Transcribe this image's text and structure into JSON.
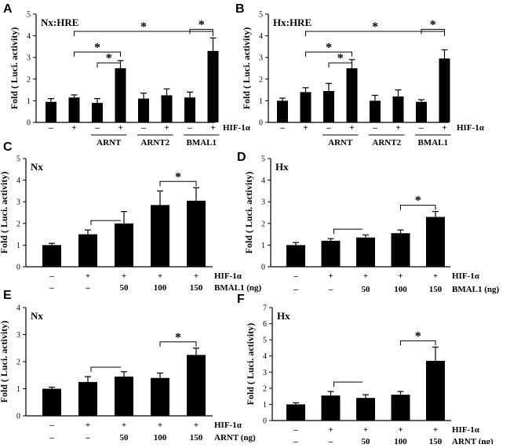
{
  "panels": [
    {
      "letter": "A",
      "inner_label": "Nx:HRE",
      "ylabel": "Fold ( Luci. activity)",
      "ylim": [
        0,
        5
      ],
      "yticks": [
        "0",
        "1",
        "2",
        "3",
        "4",
        "5"
      ],
      "plus_minus": [
        "–",
        "+",
        "–",
        "+",
        "–",
        "+",
        "–",
        "+"
      ],
      "row1_label": "HIF-1α",
      "groups": [
        {
          "label": "ARNT",
          "from": 2,
          "to": 3
        },
        {
          "label": "ARNT2",
          "from": 4,
          "to": 5
        },
        {
          "label": "BMAL1",
          "from": 6,
          "to": 7
        }
      ],
      "significance": [
        {
          "a": 1,
          "b": 3,
          "mark": "*"
        },
        {
          "a": 2,
          "b": 3,
          "mark": "*"
        },
        {
          "a": 1,
          "b": 7,
          "mark": "*"
        },
        {
          "a": 6,
          "b": 7,
          "mark": "*"
        }
      ]
    },
    {
      "letter": "B",
      "inner_label": "Hx:HRE",
      "ylabel": "Fold ( Luci. activity)",
      "ylim": [
        0,
        5
      ],
      "yticks": [
        "0",
        "1",
        "2",
        "3",
        "4",
        "5"
      ],
      "plus_minus": [
        "–",
        "+",
        "–",
        "+",
        "–",
        "+",
        "–",
        "+"
      ],
      "row1_label": "HIF-1α",
      "groups": [
        {
          "label": "ARNT",
          "from": 2,
          "to": 3
        },
        {
          "label": "ARNT2",
          "from": 4,
          "to": 5
        },
        {
          "label": "BMAL1",
          "from": 6,
          "to": 7
        }
      ],
      "significance": [
        {
          "a": 1,
          "b": 3,
          "mark": "*"
        },
        {
          "a": 2,
          "b": 3,
          "mark": "*"
        },
        {
          "a": 1,
          "b": 7,
          "mark": "*"
        },
        {
          "a": 6,
          "b": 7,
          "mark": "*"
        }
      ]
    },
    {
      "letter": "C",
      "inner_label": "Nx",
      "ylabel": "Fold ( Luci. activity)",
      "ylim": [
        0,
        5
      ],
      "yticks": [
        "0",
        "1",
        "2",
        "3",
        "4",
        "5"
      ],
      "row1": [
        "–",
        "+",
        "+",
        "+",
        "+"
      ],
      "row1_label": "HIF-1α",
      "row2": [
        "–",
        "–",
        "50",
        "100",
        "150"
      ],
      "row2_label": "BMAL1 (ng)",
      "bracket": {
        "a": 1,
        "b": 2
      },
      "significance": [
        {
          "a": 3,
          "b": 4,
          "mark": "*"
        }
      ]
    },
    {
      "letter": "D",
      "inner_label": "Hx",
      "ylabel": "Fold ( Luci. activity)",
      "ylim": [
        0,
        5
      ],
      "yticks": [
        "0",
        "1",
        "2",
        "3",
        "4",
        "5"
      ],
      "row1": [
        "–",
        "+",
        "+",
        "+",
        "+"
      ],
      "row1_label": "HIF-1α",
      "row2": [
        "–",
        "–",
        "50",
        "100",
        "150"
      ],
      "row2_label": "BMAL1 (ng)",
      "bracket": {
        "a": 1,
        "b": 2
      },
      "significance": [
        {
          "a": 3,
          "b": 4,
          "mark": "*"
        }
      ]
    },
    {
      "letter": "E",
      "inner_label": "Nx",
      "ylabel": "Fold ( Luci. activity)",
      "ylim": [
        0,
        4
      ],
      "yticks": [
        "0",
        "1",
        "2",
        "3",
        "4"
      ],
      "row1": [
        "–",
        "+",
        "+",
        "+",
        "+"
      ],
      "row1_label": "HIF-1α",
      "row2": [
        "–",
        "–",
        "50",
        "100",
        "150"
      ],
      "row2_label": "ARNT (ng)",
      "bracket": {
        "a": 1,
        "b": 2
      },
      "significance": [
        {
          "a": 3,
          "b": 4,
          "mark": "*"
        }
      ]
    },
    {
      "letter": "F",
      "inner_label": "Hx",
      "ylabel": "Fold ( Luci. activity)",
      "ylim": [
        0,
        7
      ],
      "yticks": [
        "0",
        "1",
        "2",
        "3",
        "4",
        "5",
        "6",
        "7"
      ],
      "row1": [
        "–",
        "+",
        "+",
        "+",
        "+"
      ],
      "row1_label": "HIF-1α",
      "row2": [
        "–",
        "–",
        "50",
        "100",
        "150"
      ],
      "row2_label": "ARNT (ng)",
      "bracket": {
        "a": 1,
        "b": 2
      },
      "significance": [
        {
          "a": 3,
          "b": 4,
          "mark": "*"
        }
      ]
    }
  ],
  "chart_data": [
    {
      "type": "bar",
      "title": "Nx:HRE",
      "ylabel": "Fold ( Luci. activity)",
      "ylim": [
        0,
        5
      ],
      "categories": [
        "1",
        "2",
        "3",
        "4",
        "5",
        "6",
        "7",
        "8"
      ],
      "values": [
        0.95,
        1.15,
        0.9,
        2.5,
        1.1,
        1.25,
        1.15,
        3.3
      ],
      "errors": [
        0.15,
        0.12,
        0.2,
        0.35,
        0.25,
        0.3,
        0.25,
        0.6
      ]
    },
    {
      "type": "bar",
      "title": "Hx:HRE",
      "ylabel": "Fold ( Luci. activity)",
      "ylim": [
        0,
        5
      ],
      "categories": [
        "1",
        "2",
        "3",
        "4",
        "5",
        "6",
        "7",
        "8"
      ],
      "values": [
        1.0,
        1.4,
        1.45,
        2.5,
        1.0,
        1.2,
        0.95,
        2.95
      ],
      "errors": [
        0.12,
        0.2,
        0.35,
        0.4,
        0.25,
        0.3,
        0.1,
        0.4
      ]
    },
    {
      "type": "bar",
      "title": "Nx",
      "ylabel": "Fold ( Luci. activity)",
      "ylim": [
        0,
        5
      ],
      "categories": [
        "1",
        "2",
        "3",
        "4",
        "5"
      ],
      "values": [
        1.0,
        1.5,
        2.0,
        2.85,
        3.05
      ],
      "errors": [
        0.08,
        0.2,
        0.55,
        0.65,
        0.6
      ]
    },
    {
      "type": "bar",
      "title": "Hx",
      "ylabel": "Fold ( Luci. activity)",
      "ylim": [
        0,
        5
      ],
      "categories": [
        "1",
        "2",
        "3",
        "4",
        "5"
      ],
      "values": [
        1.0,
        1.2,
        1.35,
        1.55,
        2.3
      ],
      "errors": [
        0.12,
        0.1,
        0.12,
        0.15,
        0.25
      ]
    },
    {
      "type": "bar",
      "title": "Nx",
      "ylabel": "Fold ( Luci. activity)",
      "ylim": [
        0,
        4
      ],
      "categories": [
        "1",
        "2",
        "3",
        "4",
        "5"
      ],
      "values": [
        1.0,
        1.25,
        1.45,
        1.4,
        2.25
      ],
      "errors": [
        0.06,
        0.2,
        0.18,
        0.18,
        0.25
      ]
    },
    {
      "type": "bar",
      "title": "Hx",
      "ylabel": "Fold ( Luci. activity)",
      "ylim": [
        0,
        7
      ],
      "categories": [
        "1",
        "2",
        "3",
        "4",
        "5"
      ],
      "values": [
        1.0,
        1.55,
        1.4,
        1.6,
        3.7
      ],
      "errors": [
        0.1,
        0.25,
        0.2,
        0.2,
        0.85
      ]
    }
  ]
}
